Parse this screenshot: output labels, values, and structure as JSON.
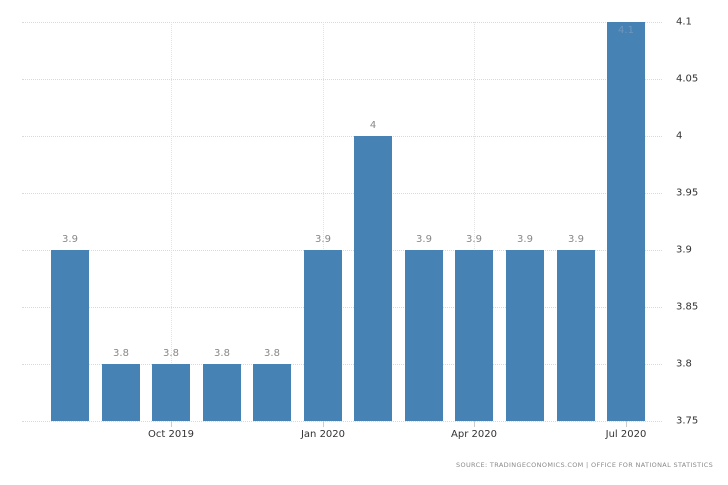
{
  "chart_data": {
    "type": "bar",
    "title": "",
    "xlabel": "",
    "ylabel": "",
    "categories": [
      "Aug 2019",
      "Sep 2019",
      "Oct 2019",
      "Nov 2019",
      "Dec 2019",
      "Jan 2020",
      "Feb 2020",
      "Mar 2020",
      "Apr 2020",
      "May 2020",
      "Jun 2020",
      "Jul 2020"
    ],
    "values": [
      3.9,
      3.8,
      3.8,
      3.8,
      3.8,
      3.9,
      4.0,
      3.9,
      3.9,
      3.9,
      3.9,
      4.1
    ],
    "value_labels": [
      "3.9",
      "3.8",
      "3.8",
      "3.8",
      "3.8",
      "3.9",
      "4",
      "3.9",
      "3.9",
      "3.9",
      "3.9",
      "4.1"
    ],
    "x_tick_labels": [
      "Oct 2019",
      "Jan 2020",
      "Apr 2020",
      "Jul 2020"
    ],
    "y_tick_labels": [
      "4.1",
      "4.05",
      "4",
      "3.95",
      "3.9",
      "3.85",
      "3.8",
      "3.75"
    ],
    "ylim": [
      3.75,
      4.1
    ],
    "y_axis_position": "right",
    "grid": true,
    "legend": null,
    "bar_color": "#4682b4"
  },
  "footer": {
    "source": "SOURCE: TRADINGECONOMICS.COM  |  OFFICE FOR NATIONAL STATISTICS"
  }
}
